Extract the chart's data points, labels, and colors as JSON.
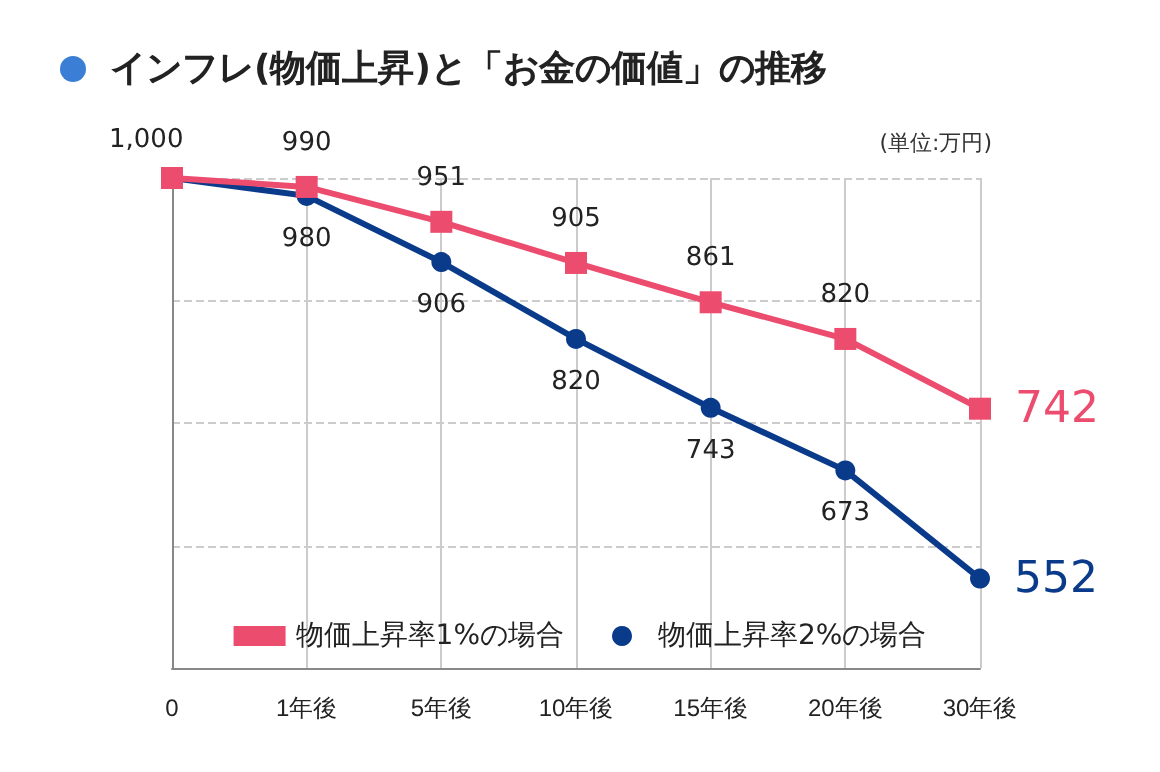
{
  "chart_data": {
    "type": "line",
    "title": "インフレ(物価上昇)と「お金の価値」の推移",
    "annotations": [
      "(単位:万円)"
    ],
    "categories": [
      "0",
      "1年後",
      "5年後",
      "10年後",
      "15年後",
      "20年後",
      "30年後"
    ],
    "series": [
      {
        "name": "物価上昇率1%の場合",
        "color": "#ec4c6e",
        "marker": "square",
        "values": [
          1000,
          990,
          951,
          905,
          861,
          820,
          742
        ],
        "value_labels": [
          "1,000",
          "990",
          "951",
          "905",
          "861",
          "820",
          "742"
        ]
      },
      {
        "name": "物価上昇率2%の場合",
        "color": "#0a3a8a",
        "marker": "circle",
        "values": [
          1000,
          980,
          906,
          820,
          743,
          673,
          552
        ],
        "value_labels": [
          null,
          "980",
          "906",
          "820",
          "743",
          "673",
          "552"
        ]
      }
    ],
    "ylim": [
      452,
      1000
    ],
    "yticks": [
      {
        "value": 1000,
        "label": null
      },
      {
        "value": 863,
        "label": null
      },
      {
        "value": 726,
        "label": null
      },
      {
        "value": 589,
        "label": null
      },
      {
        "value": 452,
        "label": null
      }
    ],
    "grid": true,
    "legend": "bottom",
    "line_style": "solid"
  }
}
